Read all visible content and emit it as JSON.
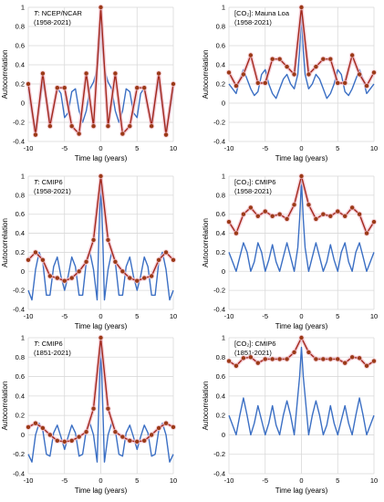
{
  "figure": {
    "ylabel": "Autocorrelation",
    "xlabel": "Time lag (years)"
  },
  "chart_data": [
    {
      "type": "line",
      "title_italic": "T",
      "title_rest": ": NCEP/NCAR",
      "subtitle": "(1958-2021)",
      "xlim": [
        -10,
        10
      ],
      "ylim": [
        -0.4,
        1
      ],
      "xticks": [
        "-10",
        "-5",
        "0",
        "5",
        "10"
      ],
      "yticks": [
        "-0.4",
        "-0.2",
        "0",
        "0.2",
        "0.4",
        "0.6",
        "0.8",
        "1"
      ],
      "series": [
        {
          "role": "monthly",
          "color": "#3b6fc4",
          "x": [
            -10,
            -9.5,
            -9,
            -8.5,
            -8,
            -7.5,
            -7,
            -6.5,
            -6,
            -5.5,
            -5,
            -4.5,
            -4,
            -3.5,
            -3,
            -2.5,
            -2,
            -1.5,
            -1,
            -0.5,
            -0.25,
            0,
            0.25,
            0.5,
            1,
            1.5,
            2,
            2.5,
            3,
            3.5,
            4,
            4.5,
            5,
            5.5,
            6,
            6.5,
            7,
            7.5,
            8,
            8.5,
            9,
            9.5,
            10
          ],
          "y": [
            0.15,
            -0.1,
            -0.28,
            -0.05,
            0.22,
            0.05,
            -0.2,
            -0.05,
            0.16,
            0.1,
            -0.15,
            -0.1,
            0.12,
            0.15,
            -0.08,
            -0.2,
            -0.08,
            0.15,
            0.22,
            0.35,
            0.55,
            0.97,
            0.55,
            0.35,
            0.22,
            0.15,
            -0.08,
            -0.2,
            -0.08,
            0.15,
            0.12,
            -0.1,
            -0.15,
            0.1,
            0.16,
            -0.05,
            -0.2,
            0.05,
            0.22,
            -0.05,
            -0.28,
            -0.1,
            0.15
          ]
        },
        {
          "role": "annual",
          "color": "#a3291d",
          "x": [
            -10,
            -9,
            -8,
            -7,
            -6,
            -5,
            -4,
            -3,
            -2,
            -1,
            0,
            1,
            2,
            3,
            4,
            5,
            6,
            7,
            8,
            9,
            10
          ],
          "y": [
            0.2,
            -0.33,
            0.31,
            -0.24,
            0.16,
            0.16,
            -0.24,
            -0.32,
            0.31,
            -0.24,
            1.0,
            -0.24,
            0.31,
            -0.32,
            -0.24,
            0.16,
            0.16,
            -0.24,
            0.31,
            -0.33,
            0.2
          ]
        }
      ]
    },
    {
      "type": "line",
      "title_italic": "",
      "title_rest": "[CO₂]: Mauna Loa",
      "subtitle": "(1958-2021)",
      "xlim": [
        -10,
        10
      ],
      "ylim": [
        -0.4,
        1
      ],
      "xticks": [
        "-10",
        "-5",
        "0",
        "5",
        "10"
      ],
      "yticks": [
        "-0.4",
        "-0.2",
        "0",
        "0.2",
        "0.4",
        "0.6",
        "0.8",
        "1"
      ],
      "series": [
        {
          "role": "monthly",
          "color": "#3b6fc4",
          "x": [
            -10,
            -9.5,
            -9,
            -8.5,
            -8,
            -7.5,
            -7,
            -6.5,
            -6,
            -5.5,
            -5,
            -4.5,
            -4,
            -3.5,
            -3,
            -2.5,
            -2,
            -1.5,
            -1,
            -0.5,
            -0.25,
            0,
            0.25,
            0.5,
            1,
            1.5,
            2,
            2.5,
            3,
            3.5,
            4,
            4.5,
            5,
            5.5,
            6,
            6.5,
            7,
            7.5,
            8,
            8.5,
            9,
            9.5,
            10
          ],
          "y": [
            0.2,
            0.15,
            0.1,
            0.25,
            0.35,
            0.25,
            0.15,
            0.08,
            0.12,
            0.3,
            0.35,
            0.2,
            0.1,
            0.05,
            0.15,
            0.25,
            0.3,
            0.2,
            0.15,
            0.3,
            0.55,
            0.95,
            0.55,
            0.3,
            0.15,
            0.2,
            0.3,
            0.25,
            0.15,
            0.05,
            0.1,
            0.2,
            0.35,
            0.3,
            0.12,
            0.08,
            0.15,
            0.25,
            0.35,
            0.25,
            0.1,
            0.15,
            0.2
          ]
        },
        {
          "role": "annual",
          "color": "#a3291d",
          "x": [
            -10,
            -9,
            -8,
            -7,
            -6,
            -5,
            -4,
            -3,
            -2,
            -1,
            0,
            1,
            2,
            3,
            4,
            5,
            6,
            7,
            8,
            9,
            10
          ],
          "y": [
            0.32,
            0.18,
            0.3,
            0.5,
            0.21,
            0.21,
            0.46,
            0.46,
            0.38,
            0.3,
            1.0,
            0.3,
            0.38,
            0.46,
            0.46,
            0.21,
            0.21,
            0.5,
            0.3,
            0.18,
            0.32
          ]
        }
      ]
    },
    {
      "type": "line",
      "title_italic": "T",
      "title_rest": ": CMIP6",
      "subtitle": "(1958-2021)",
      "xlim": [
        -10,
        10
      ],
      "ylim": [
        -0.4,
        1
      ],
      "xticks": [
        "-10",
        "-5",
        "0",
        "5",
        "10"
      ],
      "yticks": [
        "-0.4",
        "-0.2",
        "0",
        "0.2",
        "0.4",
        "0.6",
        "0.8",
        "1"
      ],
      "series": [
        {
          "role": "monthly",
          "color": "#3b6fc4",
          "x": [
            -10,
            -9.5,
            -9,
            -8.5,
            -8,
            -7.5,
            -7,
            -6.5,
            -6,
            -5.5,
            -5,
            -4.5,
            -4,
            -3.5,
            -3,
            -2.5,
            -2,
            -1.5,
            -1,
            -0.5,
            -0.25,
            0,
            0.25,
            0.5,
            1,
            1.5,
            2,
            2.5,
            3,
            3.5,
            4,
            4.5,
            5,
            5.5,
            6,
            6.5,
            7,
            7.5,
            8,
            8.5,
            9,
            9.5,
            10
          ],
          "y": [
            -0.2,
            -0.3,
            0.02,
            0.2,
            0.1,
            -0.25,
            -0.25,
            0.05,
            0.15,
            -0.05,
            -0.2,
            -0.05,
            0.15,
            0.05,
            -0.25,
            -0.25,
            0.1,
            0.2,
            0.02,
            -0.3,
            0.4,
            0.95,
            0.4,
            -0.3,
            0.02,
            0.2,
            0.1,
            -0.25,
            -0.25,
            0.05,
            0.15,
            -0.05,
            -0.2,
            -0.05,
            0.15,
            0.05,
            -0.25,
            -0.25,
            0.1,
            0.2,
            0.02,
            -0.3,
            -0.2
          ]
        },
        {
          "role": "annual",
          "color": "#a3291d",
          "x": [
            -10,
            -9,
            -8,
            -7,
            -6,
            -5,
            -4,
            -3,
            -2,
            -1,
            0,
            1,
            2,
            3,
            4,
            5,
            6,
            7,
            8,
            9,
            10
          ],
          "y": [
            0.12,
            0.2,
            0.12,
            -0.05,
            -0.07,
            -0.1,
            -0.07,
            0.0,
            0.1,
            0.33,
            1.0,
            0.33,
            0.1,
            0.0,
            -0.07,
            -0.1,
            -0.07,
            -0.05,
            0.12,
            0.2,
            0.12
          ]
        }
      ]
    },
    {
      "type": "line",
      "title_italic": "",
      "title_rest": "[CO₂]: CMIP6",
      "subtitle": "(1958-2021)",
      "xlim": [
        -10,
        10
      ],
      "ylim": [
        -0.4,
        1
      ],
      "xticks": [
        "-10",
        "-5",
        "0",
        "5",
        "10"
      ],
      "yticks": [
        "-0.4",
        "-0.2",
        "0",
        "0.2",
        "0.4",
        "0.6",
        "0.8",
        "1"
      ],
      "series": [
        {
          "role": "monthly",
          "color": "#3b6fc4",
          "x": [
            -10,
            -9.5,
            -9,
            -8.5,
            -8,
            -7.5,
            -7,
            -6.5,
            -6,
            -5.5,
            -5,
            -4.5,
            -4,
            -3.5,
            -3,
            -2.5,
            -2,
            -1.5,
            -1,
            -0.5,
            -0.25,
            0,
            0.25,
            0.5,
            1,
            1.5,
            2,
            2.5,
            3,
            3.5,
            4,
            4.5,
            5,
            5.5,
            6,
            6.5,
            7,
            7.5,
            8,
            8.5,
            9,
            9.5,
            10
          ],
          "y": [
            0.2,
            0.1,
            0.0,
            0.15,
            0.3,
            0.2,
            0.0,
            0.1,
            0.3,
            0.2,
            0.0,
            0.12,
            0.28,
            0.1,
            0.0,
            0.15,
            0.3,
            0.15,
            0.0,
            0.25,
            0.55,
            0.95,
            0.55,
            0.25,
            0.0,
            0.15,
            0.3,
            0.15,
            0.0,
            0.1,
            0.28,
            0.12,
            0.0,
            0.2,
            0.3,
            0.1,
            0.0,
            0.2,
            0.3,
            0.15,
            0.0,
            0.1,
            0.2
          ]
        },
        {
          "role": "annual",
          "color": "#a3291d",
          "x": [
            -10,
            -9,
            -8,
            -7,
            -6,
            -5,
            -4,
            -3,
            -2,
            -1,
            0,
            1,
            2,
            3,
            4,
            5,
            6,
            7,
            8,
            9,
            10
          ],
          "y": [
            0.52,
            0.4,
            0.6,
            0.67,
            0.58,
            0.63,
            0.58,
            0.6,
            0.55,
            0.7,
            1.0,
            0.7,
            0.55,
            0.6,
            0.58,
            0.63,
            0.58,
            0.67,
            0.6,
            0.4,
            0.52
          ]
        }
      ]
    },
    {
      "type": "line",
      "title_italic": "T",
      "title_rest": ": CMIP6",
      "subtitle": "(1851-2021)",
      "xlim": [
        -10,
        10
      ],
      "ylim": [
        -0.4,
        1
      ],
      "xticks": [
        "-10",
        "-5",
        "0",
        "5",
        "10"
      ],
      "yticks": [
        "-0.4",
        "-0.2",
        "0",
        "0.2",
        "0.4",
        "0.6",
        "0.8",
        "1"
      ],
      "series": [
        {
          "role": "monthly",
          "color": "#3b6fc4",
          "x": [
            -10,
            -9.5,
            -9,
            -8.5,
            -8,
            -7.5,
            -7,
            -6.5,
            -6,
            -5.5,
            -5,
            -4.5,
            -4,
            -3.5,
            -3,
            -2.5,
            -2,
            -1.5,
            -1,
            -0.5,
            -0.25,
            0,
            0.25,
            0.5,
            1,
            1.5,
            2,
            2.5,
            3,
            3.5,
            4,
            4.5,
            5,
            5.5,
            6,
            6.5,
            7,
            7.5,
            8,
            8.5,
            9,
            9.5,
            10
          ],
          "y": [
            -0.2,
            -0.28,
            0.0,
            0.12,
            0.05,
            -0.2,
            -0.22,
            0.02,
            0.1,
            -0.02,
            -0.15,
            -0.02,
            0.1,
            0.02,
            -0.22,
            -0.2,
            0.05,
            0.12,
            0.0,
            -0.28,
            0.35,
            0.95,
            0.35,
            -0.28,
            0.0,
            0.12,
            0.05,
            -0.2,
            -0.22,
            0.02,
            0.1,
            -0.02,
            -0.15,
            -0.02,
            0.1,
            0.02,
            -0.22,
            -0.2,
            0.05,
            0.12,
            0.0,
            -0.28,
            -0.2
          ]
        },
        {
          "role": "annual",
          "color": "#a3291d",
          "x": [
            -10,
            -9,
            -8,
            -7,
            -6,
            -5,
            -4,
            -3,
            -2,
            -1,
            0,
            1,
            2,
            3,
            4,
            5,
            6,
            7,
            8,
            9,
            10
          ],
          "y": [
            0.08,
            0.12,
            0.07,
            0.0,
            -0.06,
            -0.07,
            -0.06,
            -0.02,
            0.03,
            0.27,
            1.0,
            0.27,
            0.03,
            -0.02,
            -0.06,
            -0.07,
            -0.06,
            0.0,
            0.07,
            0.12,
            0.08
          ]
        }
      ]
    },
    {
      "type": "line",
      "title_italic": "",
      "title_rest": "[CO₂]: CMIP6",
      "subtitle": "(1851-2021)",
      "xlim": [
        -10,
        10
      ],
      "ylim": [
        -0.4,
        1
      ],
      "xticks": [
        "-10",
        "-5",
        "0",
        "5",
        "10"
      ],
      "yticks": [
        "-0.4",
        "-0.2",
        "0",
        "0.2",
        "0.4",
        "0.6",
        "0.8",
        "1"
      ],
      "series": [
        {
          "role": "monthly",
          "color": "#3b6fc4",
          "x": [
            -10,
            -9.5,
            -9,
            -8.5,
            -8,
            -7.5,
            -7,
            -6.5,
            -6,
            -5.5,
            -5,
            -4.5,
            -4,
            -3.5,
            -3,
            -2.5,
            -2,
            -1.5,
            -1,
            -0.5,
            -0.25,
            0,
            0.25,
            0.5,
            1,
            1.5,
            2,
            2.5,
            3,
            3.5,
            4,
            4.5,
            5,
            5.5,
            6,
            6.5,
            7,
            7.5,
            8,
            8.5,
            9,
            9.5,
            10
          ],
          "y": [
            0.2,
            0.1,
            0.0,
            0.2,
            0.38,
            0.2,
            0.0,
            0.12,
            0.3,
            0.15,
            0.0,
            0.12,
            0.3,
            0.1,
            0.0,
            0.2,
            0.35,
            0.2,
            0.0,
            0.4,
            0.6,
            0.9,
            0.6,
            0.4,
            0.0,
            0.2,
            0.35,
            0.2,
            0.0,
            0.1,
            0.3,
            0.12,
            0.0,
            0.15,
            0.3,
            0.12,
            0.0,
            0.2,
            0.38,
            0.2,
            0.0,
            0.1,
            0.2
          ]
        },
        {
          "role": "annual",
          "color": "#a3291d",
          "x": [
            -10,
            -9,
            -8,
            -7,
            -6,
            -5,
            -4,
            -3,
            -2,
            -1,
            0,
            1,
            2,
            3,
            4,
            5,
            6,
            7,
            8,
            9,
            10
          ],
          "y": [
            0.76,
            0.71,
            0.79,
            0.8,
            0.74,
            0.78,
            0.78,
            0.78,
            0.78,
            0.85,
            1.0,
            0.85,
            0.78,
            0.78,
            0.78,
            0.78,
            0.74,
            0.8,
            0.79,
            0.71,
            0.76
          ]
        }
      ]
    }
  ]
}
